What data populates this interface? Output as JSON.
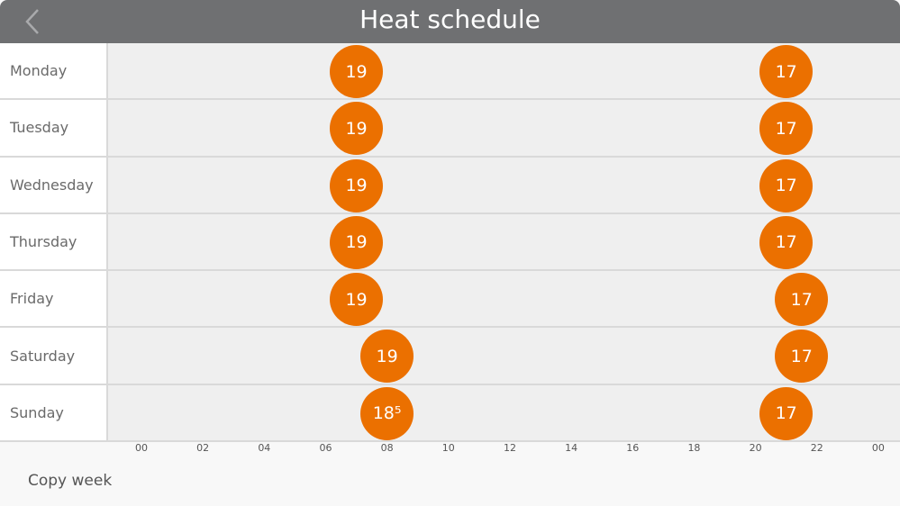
{
  "header": {
    "title": "Heat schedule",
    "back_icon": "chevron-left-icon"
  },
  "accent_color": "#eb7000",
  "schedule": [
    {
      "day": "Monday",
      "setpoints": [
        {
          "time": "07:00",
          "temp": 19,
          "label": "19"
        },
        {
          "time": "21:00",
          "temp": 17,
          "label": "17"
        }
      ]
    },
    {
      "day": "Tuesday",
      "setpoints": [
        {
          "time": "07:00",
          "temp": 19,
          "label": "19"
        },
        {
          "time": "21:00",
          "temp": 17,
          "label": "17"
        }
      ]
    },
    {
      "day": "Wednesday",
      "setpoints": [
        {
          "time": "07:00",
          "temp": 19,
          "label": "19"
        },
        {
          "time": "21:00",
          "temp": 17,
          "label": "17"
        }
      ]
    },
    {
      "day": "Thursday",
      "setpoints": [
        {
          "time": "07:00",
          "temp": 19,
          "label": "19"
        },
        {
          "time": "21:00",
          "temp": 17,
          "label": "17"
        }
      ]
    },
    {
      "day": "Friday",
      "setpoints": [
        {
          "time": "07:00",
          "temp": 19,
          "label": "19"
        },
        {
          "time": "21:30",
          "temp": 17,
          "label": "17"
        }
      ]
    },
    {
      "day": "Saturday",
      "setpoints": [
        {
          "time": "08:00",
          "temp": 19,
          "label": "19"
        },
        {
          "time": "21:30",
          "temp": 17,
          "label": "17"
        }
      ]
    },
    {
      "day": "Sunday",
      "setpoints": [
        {
          "time": "08:00",
          "temp": 18.5,
          "label": "18⁵"
        },
        {
          "time": "21:00",
          "temp": 17,
          "label": "17"
        }
      ]
    }
  ],
  "axis_ticks": [
    "00",
    "02",
    "04",
    "06",
    "08",
    "10",
    "12",
    "14",
    "16",
    "18",
    "20",
    "22",
    "00"
  ],
  "footer": {
    "copy_week": "Copy week"
  }
}
